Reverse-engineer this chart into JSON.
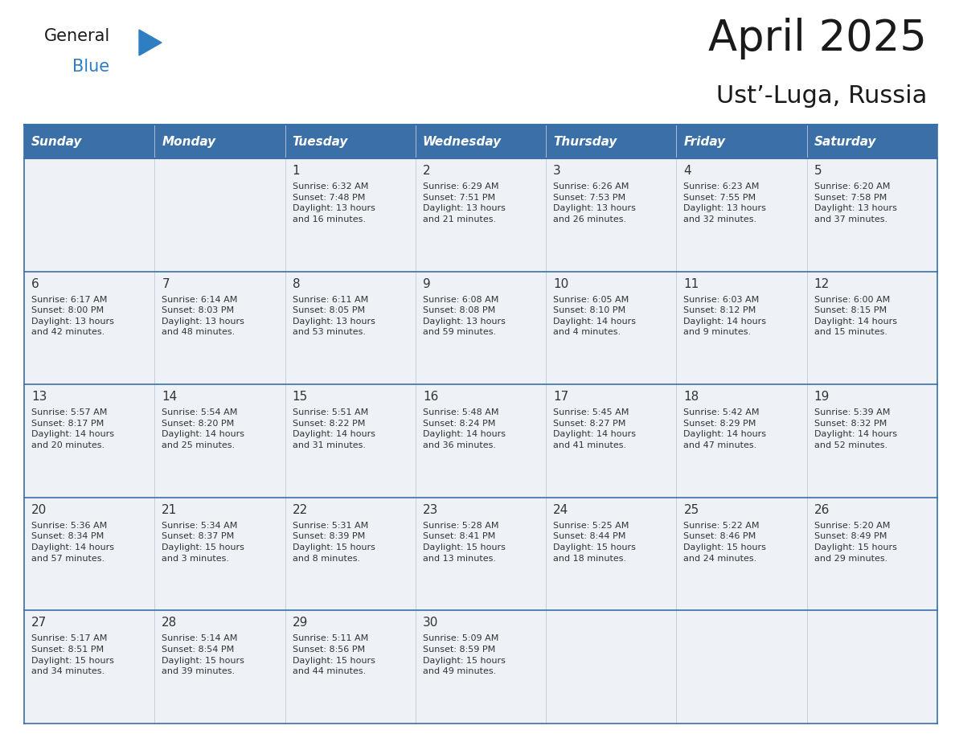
{
  "title": "April 2025",
  "subtitle": "Ust’-Luga, Russia",
  "header_color": "#3a6fa8",
  "header_text_color": "#ffffff",
  "cell_bg_light": "#eef2f7",
  "cell_bg_white": "#ffffff",
  "border_color": "#3a6fa8",
  "text_color": "#333333",
  "days_of_week": [
    "Sunday",
    "Monday",
    "Tuesday",
    "Wednesday",
    "Thursday",
    "Friday",
    "Saturday"
  ],
  "weeks": [
    [
      {
        "day": null,
        "info": null
      },
      {
        "day": null,
        "info": null
      },
      {
        "day": "1",
        "info": "Sunrise: 6:32 AM\nSunset: 7:48 PM\nDaylight: 13 hours\nand 16 minutes."
      },
      {
        "day": "2",
        "info": "Sunrise: 6:29 AM\nSunset: 7:51 PM\nDaylight: 13 hours\nand 21 minutes."
      },
      {
        "day": "3",
        "info": "Sunrise: 6:26 AM\nSunset: 7:53 PM\nDaylight: 13 hours\nand 26 minutes."
      },
      {
        "day": "4",
        "info": "Sunrise: 6:23 AM\nSunset: 7:55 PM\nDaylight: 13 hours\nand 32 minutes."
      },
      {
        "day": "5",
        "info": "Sunrise: 6:20 AM\nSunset: 7:58 PM\nDaylight: 13 hours\nand 37 minutes."
      }
    ],
    [
      {
        "day": "6",
        "info": "Sunrise: 6:17 AM\nSunset: 8:00 PM\nDaylight: 13 hours\nand 42 minutes."
      },
      {
        "day": "7",
        "info": "Sunrise: 6:14 AM\nSunset: 8:03 PM\nDaylight: 13 hours\nand 48 minutes."
      },
      {
        "day": "8",
        "info": "Sunrise: 6:11 AM\nSunset: 8:05 PM\nDaylight: 13 hours\nand 53 minutes."
      },
      {
        "day": "9",
        "info": "Sunrise: 6:08 AM\nSunset: 8:08 PM\nDaylight: 13 hours\nand 59 minutes."
      },
      {
        "day": "10",
        "info": "Sunrise: 6:05 AM\nSunset: 8:10 PM\nDaylight: 14 hours\nand 4 minutes."
      },
      {
        "day": "11",
        "info": "Sunrise: 6:03 AM\nSunset: 8:12 PM\nDaylight: 14 hours\nand 9 minutes."
      },
      {
        "day": "12",
        "info": "Sunrise: 6:00 AM\nSunset: 8:15 PM\nDaylight: 14 hours\nand 15 minutes."
      }
    ],
    [
      {
        "day": "13",
        "info": "Sunrise: 5:57 AM\nSunset: 8:17 PM\nDaylight: 14 hours\nand 20 minutes."
      },
      {
        "day": "14",
        "info": "Sunrise: 5:54 AM\nSunset: 8:20 PM\nDaylight: 14 hours\nand 25 minutes."
      },
      {
        "day": "15",
        "info": "Sunrise: 5:51 AM\nSunset: 8:22 PM\nDaylight: 14 hours\nand 31 minutes."
      },
      {
        "day": "16",
        "info": "Sunrise: 5:48 AM\nSunset: 8:24 PM\nDaylight: 14 hours\nand 36 minutes."
      },
      {
        "day": "17",
        "info": "Sunrise: 5:45 AM\nSunset: 8:27 PM\nDaylight: 14 hours\nand 41 minutes."
      },
      {
        "day": "18",
        "info": "Sunrise: 5:42 AM\nSunset: 8:29 PM\nDaylight: 14 hours\nand 47 minutes."
      },
      {
        "day": "19",
        "info": "Sunrise: 5:39 AM\nSunset: 8:32 PM\nDaylight: 14 hours\nand 52 minutes."
      }
    ],
    [
      {
        "day": "20",
        "info": "Sunrise: 5:36 AM\nSunset: 8:34 PM\nDaylight: 14 hours\nand 57 minutes."
      },
      {
        "day": "21",
        "info": "Sunrise: 5:34 AM\nSunset: 8:37 PM\nDaylight: 15 hours\nand 3 minutes."
      },
      {
        "day": "22",
        "info": "Sunrise: 5:31 AM\nSunset: 8:39 PM\nDaylight: 15 hours\nand 8 minutes."
      },
      {
        "day": "23",
        "info": "Sunrise: 5:28 AM\nSunset: 8:41 PM\nDaylight: 15 hours\nand 13 minutes."
      },
      {
        "day": "24",
        "info": "Sunrise: 5:25 AM\nSunset: 8:44 PM\nDaylight: 15 hours\nand 18 minutes."
      },
      {
        "day": "25",
        "info": "Sunrise: 5:22 AM\nSunset: 8:46 PM\nDaylight: 15 hours\nand 24 minutes."
      },
      {
        "day": "26",
        "info": "Sunrise: 5:20 AM\nSunset: 8:49 PM\nDaylight: 15 hours\nand 29 minutes."
      }
    ],
    [
      {
        "day": "27",
        "info": "Sunrise: 5:17 AM\nSunset: 8:51 PM\nDaylight: 15 hours\nand 34 minutes."
      },
      {
        "day": "28",
        "info": "Sunrise: 5:14 AM\nSunset: 8:54 PM\nDaylight: 15 hours\nand 39 minutes."
      },
      {
        "day": "29",
        "info": "Sunrise: 5:11 AM\nSunset: 8:56 PM\nDaylight: 15 hours\nand 44 minutes."
      },
      {
        "day": "30",
        "info": "Sunrise: 5:09 AM\nSunset: 8:59 PM\nDaylight: 15 hours\nand 49 minutes."
      },
      {
        "day": null,
        "info": null
      },
      {
        "day": null,
        "info": null
      },
      {
        "day": null,
        "info": null
      }
    ]
  ],
  "logo_color_general": "#1a1a1a",
  "logo_color_blue": "#2e7ec1",
  "logo_triangle_color": "#2e7ec1",
  "title_fontsize": 38,
  "subtitle_fontsize": 22,
  "header_fontsize": 11,
  "day_num_fontsize": 11,
  "info_fontsize": 8
}
